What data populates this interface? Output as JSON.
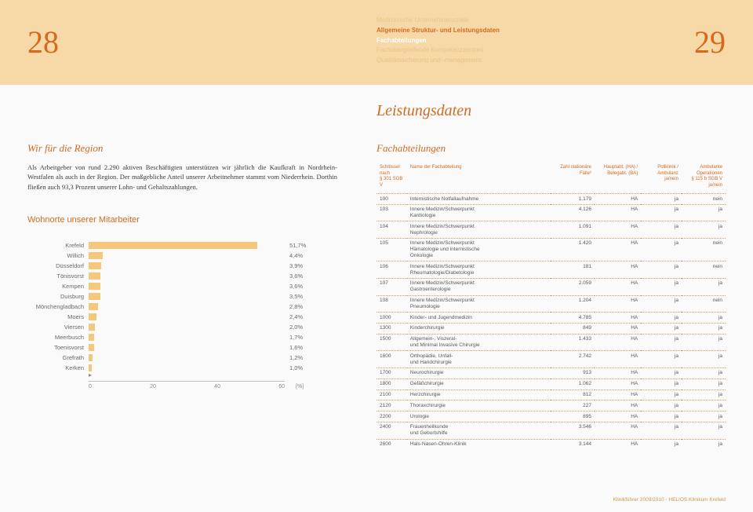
{
  "header": {
    "page_left": "28",
    "page_right": "29",
    "nav": [
      {
        "text": "Medizinische Unternehmensziele",
        "style": "muted"
      },
      {
        "text": "Allgemeine Struktur- und Leistungsdaten",
        "style": "active"
      },
      {
        "text": "Fachabteilungen",
        "style": "sub"
      },
      {
        "text": "Fachübergreifende Kompetenzzentren",
        "style": "muted"
      },
      {
        "text": "Qualitätssicherung und -management",
        "style": "muted"
      }
    ]
  },
  "main_title": "Leistungsdaten",
  "left": {
    "sub_title": "Wir für die Region",
    "body": "Als Arbeitgeber von rund 2.290 aktiven Beschäftigten unterstützen wir jährlich die Kaufkraft in Nordrhein-Westfalen als auch in der Region. Der maßgebliche Anteil unserer Arbeitnehmer stammt vom Niederrhein. Dorthin fließen auch 93,3 Prozent unserer Lohn- und Gehaltszahlungen.",
    "chart_title": "Wohnorte unserer Mitarbeiter",
    "chart": {
      "type": "bar",
      "bar_color": "#f5c77a",
      "text_color": "#6a6a6a",
      "label_fontsize": 7.5,
      "xmax": 60,
      "xticks": [
        0,
        20,
        40,
        60
      ],
      "unit": "[%]",
      "items": [
        {
          "label": "Krefeld",
          "value": 51.7,
          "display": "51,7%"
        },
        {
          "label": "Willich",
          "value": 4.4,
          "display": "4,4%"
        },
        {
          "label": "Düsseldorf",
          "value": 3.9,
          "display": "3,9%"
        },
        {
          "label": "Tönisvorst",
          "value": 3.6,
          "display": "3,6%"
        },
        {
          "label": "Kempen",
          "value": 3.6,
          "display": "3,6%"
        },
        {
          "label": "Duisburg",
          "value": 3.5,
          "display": "3,5%"
        },
        {
          "label": "Mönchengladbach",
          "value": 2.8,
          "display": "2,8%"
        },
        {
          "label": "Moers",
          "value": 2.4,
          "display": "2,4%"
        },
        {
          "label": "Viersen",
          "value": 2.0,
          "display": "2,0%"
        },
        {
          "label": "Meerbusch",
          "value": 1.7,
          "display": "1,7%"
        },
        {
          "label": "Toenisvorst",
          "value": 1.6,
          "display": "1,6%"
        },
        {
          "label": "Grefrath",
          "value": 1.2,
          "display": "1,2%"
        },
        {
          "label": "Kerken",
          "value": 1.0,
          "display": "1,0%"
        }
      ]
    }
  },
  "right": {
    "sub_title": "Fachabteilungen",
    "table": {
      "columns": [
        "Schlüssel\nnach\n§ 301 SGB V",
        "Name der Fachabteilung",
        "Zahl stationäre\nFälle²",
        "Hauptabt. (HA) /\nBelegabt. (BA)",
        "Poliklinik /\nAmbulanz\nja/nein",
        "Ambulante\nOperationen\n§ 115 b SGB V\nja/nein"
      ],
      "rows": [
        [
          "100",
          "Internistische Notfallaufnahme",
          "1.179",
          "HA",
          "ja",
          "nein"
        ],
        [
          "103",
          "Innere Medizin/Schwerpunkt\nKardiologie",
          "4.126",
          "HA",
          "ja",
          "ja"
        ],
        [
          "104",
          "Innere Medizin/Schwerpunkt\nNephrologie",
          "1.091",
          "HA",
          "ja",
          "ja"
        ],
        [
          "105",
          "Innere Medizin/Schwerpunkt\nHämatologie und internistische\nOnkologie",
          "1.420",
          "HA",
          "ja",
          "nein"
        ],
        [
          "106",
          "Innere Medizin/Schwerpunkt\nRheumatologie/Diabetologie",
          "181",
          "HA",
          "ja",
          "nein"
        ],
        [
          "107",
          "Innere Medizin/Schwerpunkt\nGastroenterologie",
          "2.059",
          "HA",
          "ja",
          "ja"
        ],
        [
          "108",
          "Innere Medizin/Schwerpunkt\nPneumologie",
          "1.204",
          "HA",
          "ja",
          "nein"
        ],
        [
          "1000",
          "Kinder- und Jugendmedizin",
          "4.785",
          "HA",
          "ja",
          "ja"
        ],
        [
          "1300",
          "Kinderchirurgie",
          "849",
          "HA",
          "ja",
          "ja"
        ],
        [
          "1500",
          "Allgemein-, Viszeral-\nund Minimal Invasive Chirurgie",
          "1.433",
          "HA",
          "ja",
          "ja"
        ],
        [
          "1600",
          "Orthopädie, Unfall-\nund Handchirurgie",
          "2.742",
          "HA",
          "ja",
          "ja"
        ],
        [
          "1700",
          "Neurochirurgie",
          "913",
          "HA",
          "ja",
          "ja"
        ],
        [
          "1800",
          "Gefäßchirurgie",
          "1.062",
          "HA",
          "ja",
          "ja"
        ],
        [
          "2100",
          "Herzchirurgie",
          "812",
          "HA",
          "ja",
          "ja"
        ],
        [
          "2120",
          "Thoraxchirurgie",
          "227",
          "HA",
          "ja",
          "ja"
        ],
        [
          "2200",
          "Urologie",
          "895",
          "HA",
          "ja",
          "ja"
        ],
        [
          "2400",
          "Frauenheilkunde\nund Geburtshilfe",
          "3.546",
          "HA",
          "ja",
          "ja"
        ],
        [
          "2600",
          "Hals-Nasen-Ohren-Klinik",
          "3.144",
          "HA",
          "ja",
          "ja"
        ]
      ]
    }
  },
  "footer": "Klinikführer 2009/2010 · HELIOS Klinikum Krefeld"
}
